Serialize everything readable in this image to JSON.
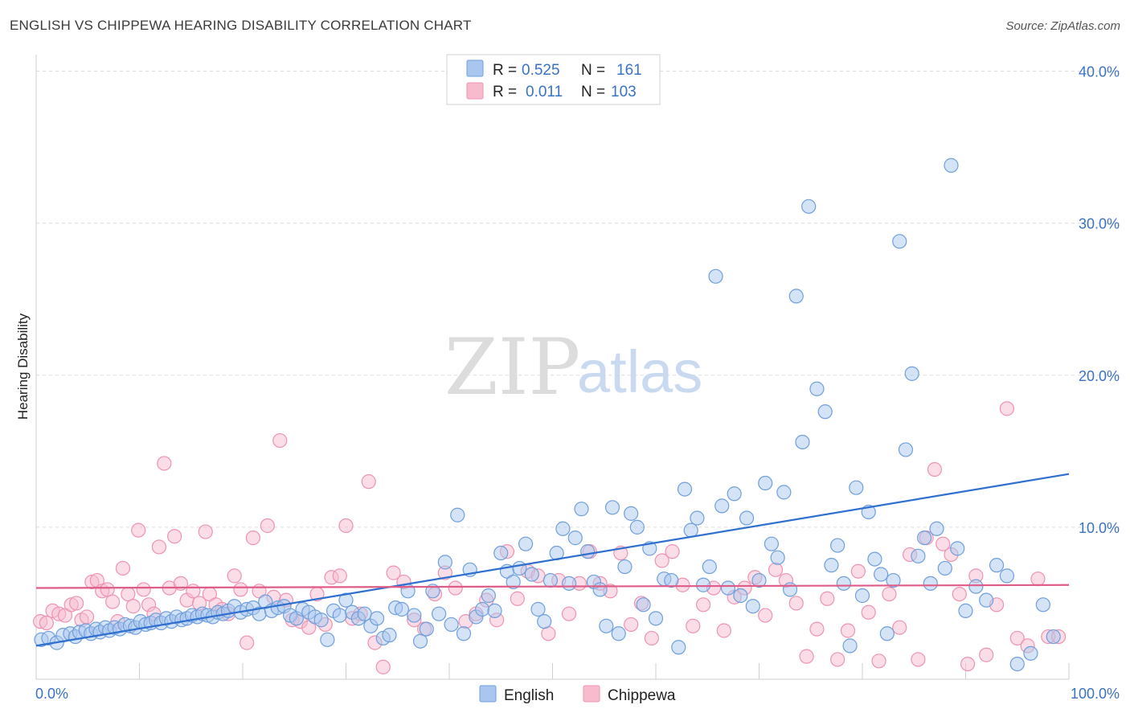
{
  "title": "ENGLISH VS CHIPPEWA HEARING DISABILITY CORRELATION CHART",
  "source": "Source: ZipAtlas.com",
  "watermark": {
    "part1": "ZIP",
    "part2": "atlas"
  },
  "colors": {
    "english_fill": "#a9c7ee",
    "english_stroke": "#6f9fdc",
    "english_line": "#2f6fd0",
    "chippewa_fill": "#f6bccd",
    "chippewa_stroke": "#ee93b0",
    "chippewa_line": "#e05c88",
    "tick_text": "#3a72c4"
  },
  "legend": {
    "rows": [
      {
        "r_label": "R =",
        "r_value": "0.525",
        "n_label": "N =",
        "n_value": "161"
      },
      {
        "r_label": "R =",
        "r_value": "0.011",
        "n_label": "N =",
        "n_value": "103"
      }
    ]
  },
  "chart_data": {
    "type": "scatter",
    "title": "ENGLISH VS CHIPPEWA HEARING DISABILITY CORRELATION CHART",
    "xlabel": "",
    "ylabel": "Hearing Disability",
    "xlim": [
      0,
      100
    ],
    "ylim": [
      0,
      40
    ],
    "x_tick_labels": [
      "0.0%",
      "100.0%"
    ],
    "y_ticks": [
      10,
      20,
      30,
      40
    ],
    "y_tick_labels": [
      "10.0%",
      "20.0%",
      "30.0%",
      "40.0%"
    ],
    "grid": "horizontal dashed",
    "legend_position": "top-center",
    "series": [
      {
        "name": "English",
        "r": 0.525,
        "n": 161,
        "trend": {
          "x0": 0,
          "y0": 2.2,
          "x1": 100,
          "y1": 13.5
        },
        "points": [
          [
            0.5,
            2.6
          ],
          [
            1.2,
            2.7
          ],
          [
            2.0,
            2.4
          ],
          [
            2.6,
            2.9
          ],
          [
            3.3,
            3.0
          ],
          [
            3.8,
            2.8
          ],
          [
            4.2,
            3.1
          ],
          [
            4.8,
            3.2
          ],
          [
            5.3,
            3.0
          ],
          [
            5.8,
            3.3
          ],
          [
            6.2,
            3.1
          ],
          [
            6.7,
            3.4
          ],
          [
            7.1,
            3.2
          ],
          [
            7.6,
            3.4
          ],
          [
            8.1,
            3.3
          ],
          [
            8.6,
            3.6
          ],
          [
            9.1,
            3.5
          ],
          [
            9.6,
            3.4
          ],
          [
            10.1,
            3.8
          ],
          [
            10.6,
            3.6
          ],
          [
            11.1,
            3.7
          ],
          [
            11.6,
            3.9
          ],
          [
            12.1,
            3.7
          ],
          [
            12.6,
            4.0
          ],
          [
            13.1,
            3.8
          ],
          [
            13.6,
            4.1
          ],
          [
            14.1,
            3.9
          ],
          [
            14.6,
            4.0
          ],
          [
            15.1,
            4.2
          ],
          [
            15.6,
            4.1
          ],
          [
            16.1,
            4.3
          ],
          [
            16.6,
            4.2
          ],
          [
            17.1,
            4.1
          ],
          [
            17.6,
            4.4
          ],
          [
            18.1,
            4.3
          ],
          [
            18.6,
            4.5
          ],
          [
            19.2,
            4.8
          ],
          [
            19.8,
            4.4
          ],
          [
            20.4,
            4.6
          ],
          [
            21.0,
            4.7
          ],
          [
            21.6,
            4.3
          ],
          [
            22.2,
            5.1
          ],
          [
            22.8,
            4.5
          ],
          [
            23.4,
            4.7
          ],
          [
            24.0,
            4.8
          ],
          [
            24.6,
            4.2
          ],
          [
            25.2,
            4.0
          ],
          [
            25.8,
            4.6
          ],
          [
            26.4,
            4.4
          ],
          [
            27.0,
            4.1
          ],
          [
            27.6,
            3.9
          ],
          [
            28.2,
            2.6
          ],
          [
            28.8,
            4.5
          ],
          [
            29.4,
            4.2
          ],
          [
            30.0,
            5.2
          ],
          [
            30.6,
            4.4
          ],
          [
            31.2,
            4.0
          ],
          [
            31.8,
            4.3
          ],
          [
            32.4,
            3.5
          ],
          [
            33.0,
            4.0
          ],
          [
            33.6,
            2.7
          ],
          [
            34.2,
            2.9
          ],
          [
            34.8,
            4.7
          ],
          [
            35.4,
            4.6
          ],
          [
            36.0,
            5.8
          ],
          [
            36.6,
            4.2
          ],
          [
            37.2,
            2.5
          ],
          [
            37.8,
            3.3
          ],
          [
            38.4,
            5.8
          ],
          [
            39.0,
            4.3
          ],
          [
            39.6,
            7.7
          ],
          [
            40.2,
            3.6
          ],
          [
            40.8,
            10.8
          ],
          [
            41.4,
            3.0
          ],
          [
            42.0,
            7.2
          ],
          [
            42.6,
            4.1
          ],
          [
            43.2,
            4.6
          ],
          [
            43.8,
            5.5
          ],
          [
            44.4,
            4.5
          ],
          [
            45.0,
            8.3
          ],
          [
            45.6,
            7.1
          ],
          [
            46.2,
            6.4
          ],
          [
            46.8,
            7.3
          ],
          [
            47.4,
            8.9
          ],
          [
            48.0,
            6.9
          ],
          [
            48.6,
            4.6
          ],
          [
            49.2,
            3.8
          ],
          [
            49.8,
            6.5
          ],
          [
            50.4,
            8.3
          ],
          [
            51.0,
            9.9
          ],
          [
            51.6,
            6.3
          ],
          [
            52.2,
            9.3
          ],
          [
            52.8,
            11.2
          ],
          [
            53.4,
            8.4
          ],
          [
            54.0,
            6.4
          ],
          [
            54.6,
            5.9
          ],
          [
            55.2,
            3.5
          ],
          [
            55.8,
            11.3
          ],
          [
            56.4,
            3.0
          ],
          [
            57.0,
            7.4
          ],
          [
            57.6,
            10.9
          ],
          [
            58.2,
            10.0
          ],
          [
            58.8,
            4.9
          ],
          [
            59.4,
            8.6
          ],
          [
            60.0,
            4.0
          ],
          [
            60.8,
            6.6
          ],
          [
            61.5,
            6.5
          ],
          [
            62.2,
            2.1
          ],
          [
            62.8,
            12.5
          ],
          [
            63.4,
            9.8
          ],
          [
            64.0,
            10.6
          ],
          [
            64.6,
            6.2
          ],
          [
            65.2,
            7.4
          ],
          [
            65.8,
            26.5
          ],
          [
            66.4,
            11.4
          ],
          [
            67.0,
            6.0
          ],
          [
            67.6,
            12.2
          ],
          [
            68.2,
            5.5
          ],
          [
            68.8,
            10.6
          ],
          [
            69.4,
            4.8
          ],
          [
            70.0,
            6.5
          ],
          [
            70.6,
            12.9
          ],
          [
            71.2,
            8.9
          ],
          [
            71.8,
            8.0
          ],
          [
            72.4,
            12.3
          ],
          [
            73.0,
            5.9
          ],
          [
            73.6,
            25.2
          ],
          [
            74.2,
            15.6
          ],
          [
            74.8,
            31.1
          ],
          [
            75.6,
            19.1
          ],
          [
            76.4,
            17.6
          ],
          [
            77.0,
            7.5
          ],
          [
            77.6,
            8.8
          ],
          [
            78.2,
            6.3
          ],
          [
            78.8,
            2.2
          ],
          [
            79.4,
            12.6
          ],
          [
            80.0,
            5.5
          ],
          [
            80.6,
            11.0
          ],
          [
            81.2,
            7.9
          ],
          [
            81.8,
            6.9
          ],
          [
            82.4,
            3.0
          ],
          [
            83.0,
            6.5
          ],
          [
            83.6,
            28.8
          ],
          [
            84.2,
            15.1
          ],
          [
            84.8,
            20.1
          ],
          [
            85.4,
            8.1
          ],
          [
            86.0,
            9.3
          ],
          [
            86.6,
            6.3
          ],
          [
            87.2,
            9.9
          ],
          [
            88.0,
            7.3
          ],
          [
            88.6,
            33.8
          ],
          [
            89.2,
            8.6
          ],
          [
            90.0,
            4.5
          ],
          [
            91.0,
            6.1
          ],
          [
            92.0,
            5.2
          ],
          [
            93.0,
            7.5
          ],
          [
            94.0,
            6.8
          ],
          [
            95.0,
            1.0
          ],
          [
            96.3,
            1.7
          ],
          [
            97.5,
            4.9
          ],
          [
            98.5,
            2.8
          ]
        ]
      },
      {
        "name": "Chippewa",
        "r": 0.011,
        "n": 103,
        "trend": {
          "x0": 0,
          "y0": 6.0,
          "x1": 100,
          "y1": 6.2
        },
        "points": [
          [
            0.4,
            3.8
          ],
          [
            1.0,
            3.7
          ],
          [
            1.6,
            4.5
          ],
          [
            2.2,
            4.3
          ],
          [
            2.8,
            4.2
          ],
          [
            3.4,
            4.9
          ],
          [
            3.9,
            5.0
          ],
          [
            4.4,
            3.9
          ],
          [
            4.9,
            4.1
          ],
          [
            5.4,
            6.4
          ],
          [
            5.9,
            6.5
          ],
          [
            6.4,
            5.8
          ],
          [
            6.9,
            5.9
          ],
          [
            7.4,
            5.1
          ],
          [
            7.9,
            3.8
          ],
          [
            8.4,
            7.3
          ],
          [
            8.9,
            5.6
          ],
          [
            9.4,
            4.8
          ],
          [
            9.9,
            9.8
          ],
          [
            10.4,
            5.9
          ],
          [
            10.9,
            4.9
          ],
          [
            11.4,
            4.3
          ],
          [
            11.9,
            8.7
          ],
          [
            12.4,
            14.2
          ],
          [
            12.9,
            6.0
          ],
          [
            13.4,
            9.4
          ],
          [
            14.0,
            6.3
          ],
          [
            14.6,
            5.2
          ],
          [
            15.2,
            5.8
          ],
          [
            15.8,
            5.0
          ],
          [
            16.4,
            9.7
          ],
          [
            16.8,
            5.6
          ],
          [
            17.4,
            4.9
          ],
          [
            18.0,
            4.6
          ],
          [
            18.6,
            4.3
          ],
          [
            19.2,
            6.8
          ],
          [
            19.8,
            5.9
          ],
          [
            20.4,
            2.4
          ],
          [
            21.0,
            9.3
          ],
          [
            21.6,
            5.8
          ],
          [
            22.4,
            10.1
          ],
          [
            23.0,
            5.4
          ],
          [
            23.6,
            15.7
          ],
          [
            24.2,
            5.2
          ],
          [
            24.8,
            3.9
          ],
          [
            25.6,
            3.8
          ],
          [
            26.4,
            3.4
          ],
          [
            27.2,
            5.6
          ],
          [
            28.0,
            3.6
          ],
          [
            28.6,
            6.7
          ],
          [
            29.4,
            6.8
          ],
          [
            30.0,
            10.1
          ],
          [
            30.6,
            4.0
          ],
          [
            31.4,
            4.3
          ],
          [
            32.2,
            13.0
          ],
          [
            32.8,
            2.4
          ],
          [
            33.6,
            0.8
          ],
          [
            34.6,
            7.0
          ],
          [
            35.6,
            6.4
          ],
          [
            36.6,
            3.9
          ],
          [
            37.6,
            3.3
          ],
          [
            38.6,
            5.6
          ],
          [
            39.6,
            7.0
          ],
          [
            40.6,
            6.0
          ],
          [
            41.6,
            3.8
          ],
          [
            42.6,
            4.3
          ],
          [
            43.6,
            5.2
          ],
          [
            44.6,
            3.9
          ],
          [
            45.6,
            8.4
          ],
          [
            46.6,
            5.3
          ],
          [
            47.6,
            7.1
          ],
          [
            48.6,
            6.8
          ],
          [
            49.6,
            3.0
          ],
          [
            50.6,
            6.5
          ],
          [
            51.6,
            4.3
          ],
          [
            52.6,
            6.3
          ],
          [
            53.6,
            8.4
          ],
          [
            54.6,
            6.3
          ],
          [
            55.6,
            5.8
          ],
          [
            56.6,
            8.3
          ],
          [
            57.6,
            3.6
          ],
          [
            58.6,
            5.0
          ],
          [
            59.6,
            2.7
          ],
          [
            60.6,
            7.8
          ],
          [
            61.6,
            8.4
          ],
          [
            62.6,
            6.2
          ],
          [
            63.6,
            3.5
          ],
          [
            64.6,
            4.9
          ],
          [
            65.6,
            6.0
          ],
          [
            66.6,
            3.2
          ],
          [
            67.6,
            5.4
          ],
          [
            68.6,
            6.0
          ],
          [
            69.6,
            6.7
          ],
          [
            70.6,
            4.2
          ],
          [
            71.6,
            7.2
          ],
          [
            72.6,
            6.5
          ],
          [
            73.6,
            5.0
          ],
          [
            74.6,
            1.5
          ],
          [
            75.6,
            3.3
          ],
          [
            76.6,
            5.3
          ],
          [
            77.6,
            1.3
          ],
          [
            78.6,
            3.2
          ],
          [
            79.6,
            7.1
          ],
          [
            80.6,
            4.4
          ],
          [
            81.6,
            1.2
          ],
          [
            82.6,
            5.6
          ],
          [
            83.6,
            3.4
          ],
          [
            84.6,
            8.2
          ],
          [
            85.4,
            1.3
          ],
          [
            86.2,
            9.3
          ],
          [
            87.0,
            13.8
          ],
          [
            87.8,
            8.9
          ],
          [
            88.6,
            8.2
          ],
          [
            89.4,
            5.6
          ],
          [
            90.2,
            1.0
          ],
          [
            91.0,
            6.8
          ],
          [
            92.0,
            1.6
          ],
          [
            93.0,
            4.9
          ],
          [
            94.0,
            17.8
          ],
          [
            95.0,
            2.7
          ],
          [
            96.0,
            2.2
          ],
          [
            97.0,
            6.6
          ],
          [
            98.0,
            2.8
          ],
          [
            99.0,
            2.8
          ]
        ]
      }
    ]
  }
}
